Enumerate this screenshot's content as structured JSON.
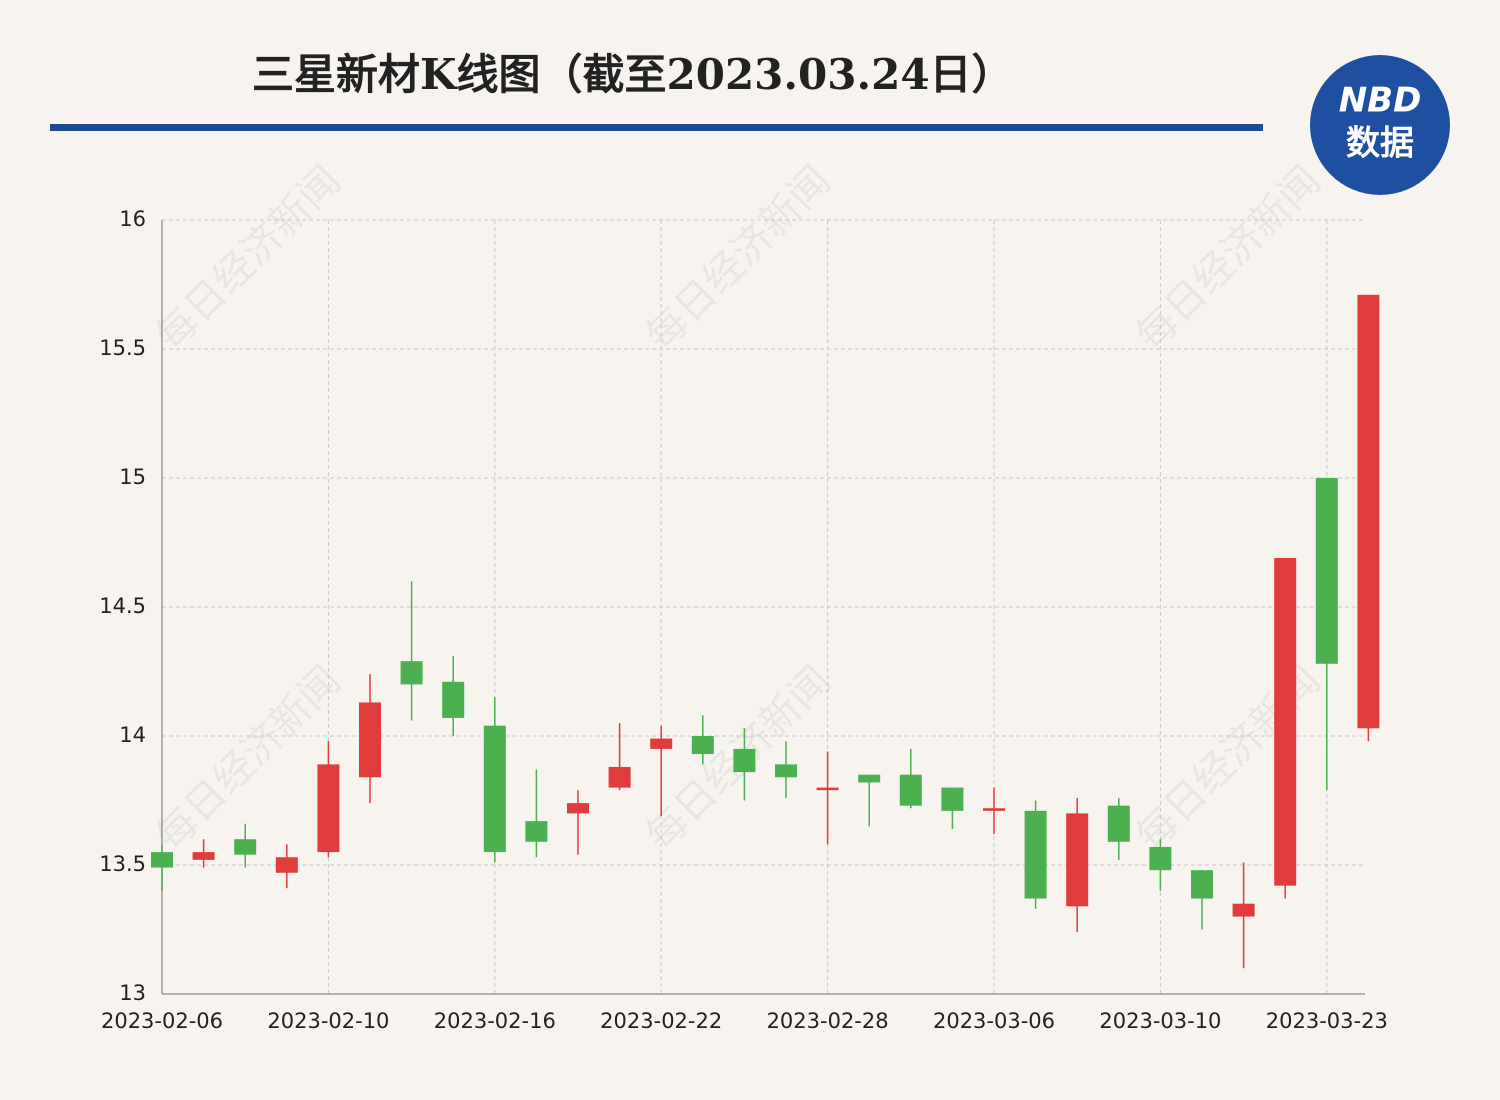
{
  "chart_data": {
    "type": "candlestick",
    "title": "三星新材K线图（截至2023.03.24日）",
    "logo": {
      "top": "NBD",
      "bottom": "数据"
    },
    "watermark": "每日经济新闻",
    "categories": [
      "2023-02-06",
      null,
      null,
      null,
      "2023-02-10",
      null,
      null,
      null,
      "2023-02-16",
      null,
      null,
      null,
      "2023-02-22",
      null,
      null,
      null,
      "2023-02-28",
      null,
      null,
      null,
      "2023-03-06",
      null,
      null,
      null,
      "2023-03-10",
      null,
      null,
      null,
      "2023-03-23",
      null
    ],
    "open": [
      13.55,
      13.52,
      13.6,
      13.47,
      13.55,
      13.84,
      14.29,
      14.21,
      14.04,
      13.67,
      13.7,
      13.8,
      13.95,
      14.0,
      13.95,
      13.89,
      13.79,
      13.85,
      13.85,
      13.8,
      13.71,
      13.71,
      13.34,
      13.73,
      13.57,
      13.48,
      13.3,
      13.42,
      15.0,
      14.03
    ],
    "high": [
      13.58,
      13.6,
      13.66,
      13.58,
      13.98,
      14.24,
      14.6,
      14.31,
      14.15,
      13.87,
      13.79,
      14.05,
      14.04,
      14.08,
      14.03,
      13.98,
      13.94,
      13.85,
      13.95,
      13.8,
      13.8,
      13.75,
      13.76,
      13.76,
      13.6,
      13.48,
      13.51,
      14.69,
      15.0,
      15.71
    ],
    "low": [
      13.4,
      13.49,
      13.49,
      13.41,
      13.53,
      13.74,
      14.06,
      14.0,
      13.51,
      13.53,
      13.54,
      13.79,
      13.69,
      13.89,
      13.75,
      13.76,
      13.58,
      13.65,
      13.72,
      13.64,
      13.62,
      13.33,
      13.24,
      13.52,
      13.4,
      13.25,
      13.1,
      13.37,
      13.79,
      13.98
    ],
    "close": [
      13.49,
      13.55,
      13.54,
      13.53,
      13.89,
      14.13,
      14.2,
      14.07,
      13.55,
      13.59,
      13.74,
      13.88,
      13.99,
      13.93,
      13.86,
      13.84,
      13.8,
      13.82,
      13.73,
      13.71,
      13.72,
      13.37,
      13.7,
      13.59,
      13.48,
      13.37,
      13.35,
      14.69,
      14.28,
      15.71
    ],
    "up_color": "#e03c3c",
    "down_color": "#4caf50",
    "ylim": [
      13,
      16
    ],
    "yticks": [
      13,
      13.5,
      14,
      14.5,
      15,
      15.5,
      16
    ],
    "grid": true
  }
}
